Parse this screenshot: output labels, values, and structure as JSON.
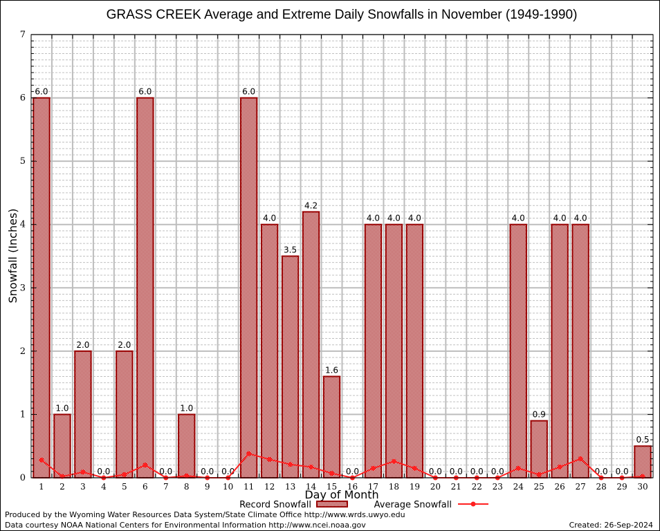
{
  "chart_data": {
    "type": "bar",
    "title": "GRASS CREEK Average and Extreme Daily Snowfalls in November (1949-1990)",
    "xlabel": "Day of Month",
    "ylabel": "Snowfall (Inches)",
    "ylim": [
      0,
      7
    ],
    "yticks": [
      0,
      1,
      2,
      3,
      4,
      5,
      6,
      7
    ],
    "y_minor_step": 0.1,
    "grid": true,
    "legend_position": "bottom-center",
    "categories": [
      "1",
      "2",
      "3",
      "4",
      "5",
      "6",
      "7",
      "8",
      "9",
      "10",
      "11",
      "12",
      "13",
      "14",
      "15",
      "16",
      "17",
      "18",
      "19",
      "20",
      "21",
      "22",
      "23",
      "24",
      "25",
      "26",
      "27",
      "28",
      "29",
      "30"
    ],
    "series": [
      {
        "name": "Record Snowfall",
        "type": "bar",
        "color": "#990000",
        "pattern": "checkered",
        "values": [
          6.0,
          1.0,
          2.0,
          0.0,
          2.0,
          6.0,
          0.0,
          1.0,
          0.0,
          0.0,
          6.0,
          4.0,
          3.5,
          4.2,
          1.6,
          0.0,
          4.0,
          4.0,
          4.0,
          0.0,
          0.0,
          0.0,
          0.0,
          4.0,
          0.9,
          4.0,
          4.0,
          0.0,
          0.0,
          0.5
        ],
        "labels": [
          "6.0",
          "1.0",
          "2.0",
          "0.0",
          "2.0",
          "6.0",
          "0.0",
          "1.0",
          "0.0",
          "0.0",
          "6.0",
          "4.0",
          "3.5",
          "4.2",
          "1.6",
          "0.0",
          "4.0",
          "4.0",
          "4.0",
          "0.0",
          "0.0",
          "0.0",
          "0.0",
          "4.0",
          "0.9",
          "4.0",
          "4.0",
          "0.0",
          "0.0",
          "0.5"
        ]
      },
      {
        "name": "Average Snowfall",
        "type": "line",
        "color": "#ff2020",
        "marker": "circle",
        "values": [
          0.28,
          0.02,
          0.09,
          0.0,
          0.05,
          0.2,
          0.0,
          0.03,
          0.0,
          0.0,
          0.38,
          0.29,
          0.21,
          0.17,
          0.07,
          0.0,
          0.15,
          0.26,
          0.15,
          0.0,
          0.0,
          0.0,
          0.0,
          0.15,
          0.05,
          0.17,
          0.3,
          0.0,
          0.0,
          0.02
        ]
      }
    ]
  },
  "footer": {
    "produced_by": "Produced by the Wyoming Water Resources Data System/State Climate Office http://www.wrds.uwyo.edu",
    "data_courtesy": "Data courtesy NOAA National Centers for Environmental Information http://www.ncei.noaa.gov",
    "created": "Created: 26-Sep-2024"
  }
}
